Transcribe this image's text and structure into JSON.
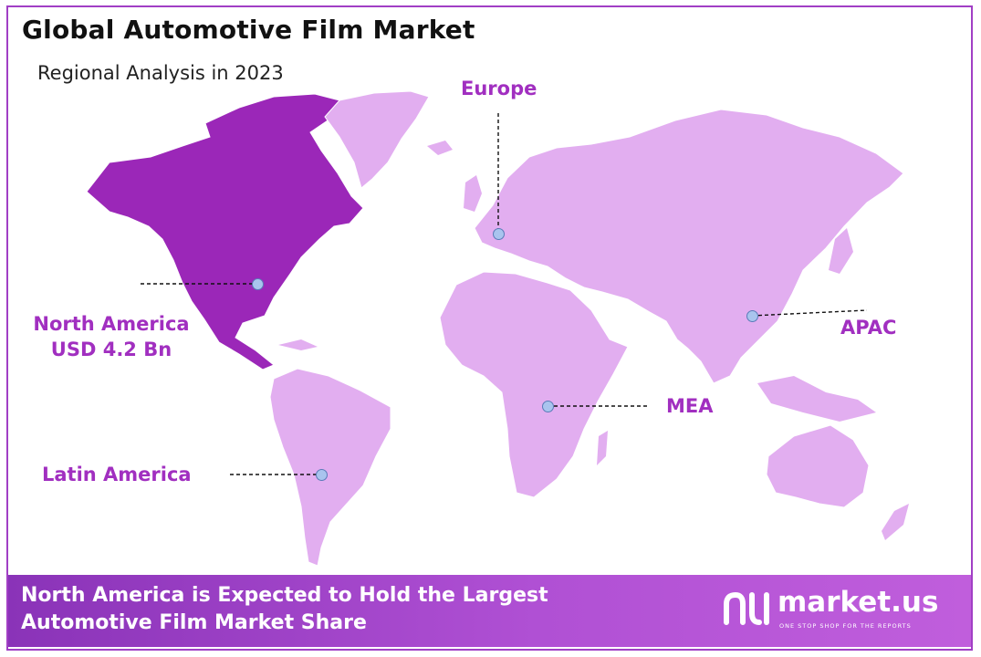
{
  "header": {
    "title": "Global Automotive Film Market",
    "subtitle": "Regional Analysis in 2023"
  },
  "regions": {
    "europe": {
      "label": "Europe"
    },
    "north_america": {
      "label_line1": "North America",
      "label_line2": "USD 4.2 Bn"
    },
    "apac": {
      "label": "APAC"
    },
    "mea": {
      "label": "MEA"
    },
    "latin_america": {
      "label": "Latin America"
    }
  },
  "footer": {
    "line1": "North America is Expected to Hold the Largest",
    "line2": "Automotive Film Market Share",
    "brand_name": "market.us",
    "brand_tagline": "ONE STOP SHOP FOR THE REPORTS"
  },
  "colors": {
    "highlight": "#9b27b8",
    "land": "#e2aef0",
    "accent_text": "#a12fc0",
    "border": "#a13fc5"
  }
}
